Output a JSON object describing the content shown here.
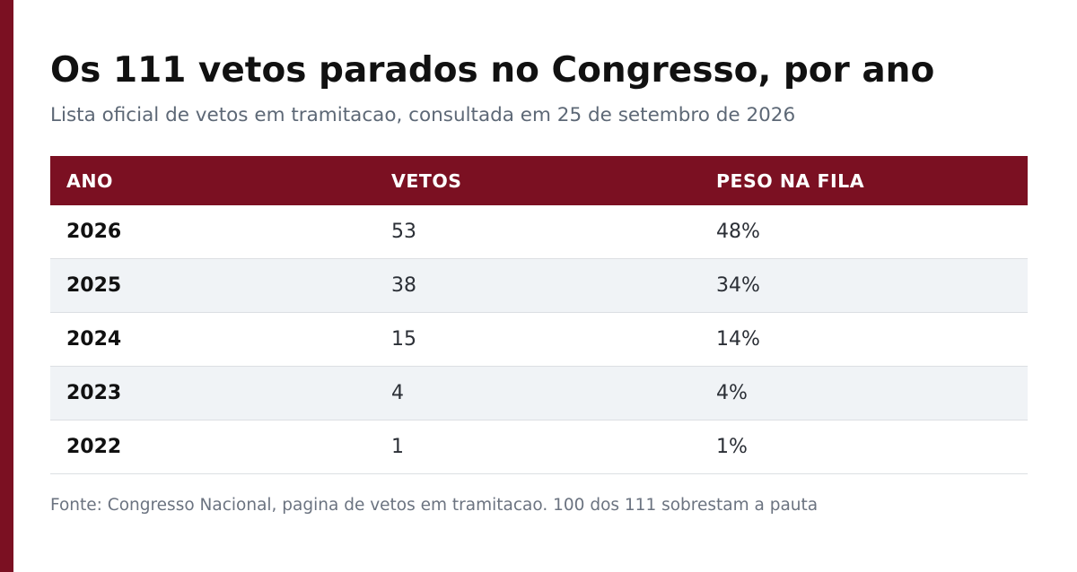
{
  "title": "Os 111 vetos parados no Congresso, por ano",
  "subtitle": "Lista oficial de vetos em tramitacao, consultada em 25 de setembro de 2026",
  "colors": {
    "accent": "#7b1022",
    "stripe": "#f0f3f6",
    "divider": "#dcdfe3"
  },
  "chart_data": {
    "type": "table",
    "title": "Os 111 vetos parados no Congresso, por ano",
    "subtitle": "Lista oficial de vetos em tramitacao, consultada em 25 de setembro de 2026",
    "columns": [
      "ANO",
      "VETOS",
      "PESO NA FILA"
    ],
    "rows": [
      [
        "2026",
        "53",
        "48%"
      ],
      [
        "2025",
        "38",
        "34%"
      ],
      [
        "2024",
        "15",
        "14%"
      ],
      [
        "2023",
        "4",
        "4%"
      ],
      [
        "2022",
        "1",
        "1%"
      ]
    ],
    "source": "Fonte: Congresso Nacional, pagina de vetos em tramitacao. 100 dos 111 sobrestam a pauta"
  },
  "footer": {
    "source": "Fonte: Congresso Nacional, pagina de vetos em tramitacao. 100 dos 111 sobrestam a pauta"
  }
}
